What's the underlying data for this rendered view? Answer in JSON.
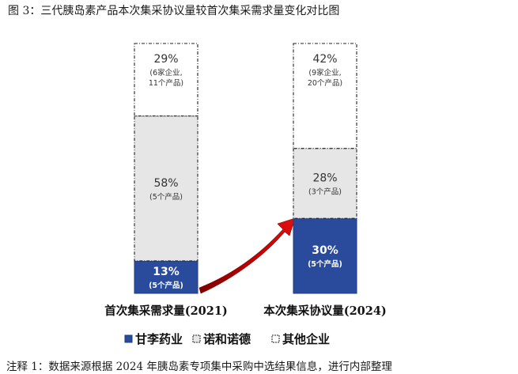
{
  "title": "图 3：三代胰岛素产品本次集采协议量较首次集采需求量变化对比图",
  "note": "注释 1：数据来源根据 2024 年胰岛素专项集中采购中选结果信息，进行内部整理",
  "colors": {
    "gan": "#2a4b9b",
    "nuo": "#e6e6e6",
    "other": "#ffffff",
    "arrow": "#c00000"
  },
  "chart_data": {
    "type": "bar",
    "stacked": true,
    "percent": true,
    "categories": [
      "首次集采需求量(2021)",
      "本次集采协议量(2024)"
    ],
    "series": [
      {
        "name": "甘李药业",
        "values": [
          13,
          30
        ],
        "labels": [
          "13%",
          "30%"
        ],
        "sublabels": [
          "(5个产品)",
          "(5个产品)"
        ]
      },
      {
        "name": "诺和诺德",
        "values": [
          58,
          28
        ],
        "labels": [
          "58%",
          "28%"
        ],
        "sublabels": [
          "(5个产品)",
          "(3个产品)"
        ]
      },
      {
        "name": "其他企业",
        "values": [
          29,
          42
        ],
        "labels": [
          "29%",
          "42%"
        ],
        "sublabels": [
          "(6家企业,\n11个产品)",
          "(9家企业,\n20个产品)"
        ]
      }
    ],
    "ylim": [
      0,
      100
    ],
    "legend_position": "bottom"
  }
}
